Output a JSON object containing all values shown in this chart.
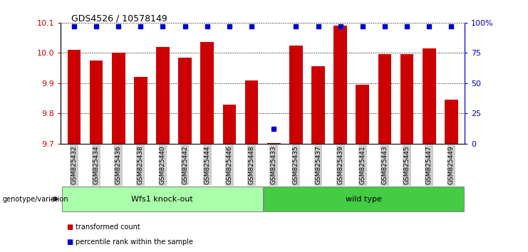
{
  "title": "GDS4526 / 10578149",
  "categories": [
    "GSM825432",
    "GSM825434",
    "GSM825436",
    "GSM825438",
    "GSM825440",
    "GSM825442",
    "GSM825444",
    "GSM825446",
    "GSM825448",
    "GSM825433",
    "GSM825435",
    "GSM825437",
    "GSM825439",
    "GSM825441",
    "GSM825443",
    "GSM825445",
    "GSM825447",
    "GSM825449"
  ],
  "bar_values": [
    10.01,
    9.975,
    10.0,
    9.92,
    10.02,
    9.985,
    10.035,
    9.83,
    9.91,
    9.701,
    10.025,
    9.955,
    10.09,
    9.895,
    9.995,
    9.995,
    10.015,
    9.845
  ],
  "percentile_values": [
    97,
    97,
    97,
    97,
    97,
    97,
    97,
    97,
    97,
    12,
    97,
    97,
    97,
    97,
    97,
    97,
    97,
    97
  ],
  "group1_count": 9,
  "group2_count": 9,
  "group1_label": "Wfs1 knock-out",
  "group2_label": "wild type",
  "group1_color": "#aaffaa",
  "group2_color": "#44cc44",
  "bar_color": "#cc0000",
  "dot_color": "#0000cc",
  "ymin": 9.7,
  "ymax": 10.1,
  "yticks_left": [
    9.7,
    9.8,
    9.9,
    10.0,
    10.1
  ],
  "right_yticks": [
    0,
    25,
    50,
    75,
    100
  ],
  "right_yticklabels": [
    "0",
    "25",
    "50",
    "75",
    "100%"
  ],
  "legend_items": [
    "transformed count",
    "percentile rank within the sample"
  ],
  "legend_colors": [
    "#cc0000",
    "#0000cc"
  ],
  "bg_color": "#ffffff",
  "tick_label_bg": "#cccccc"
}
